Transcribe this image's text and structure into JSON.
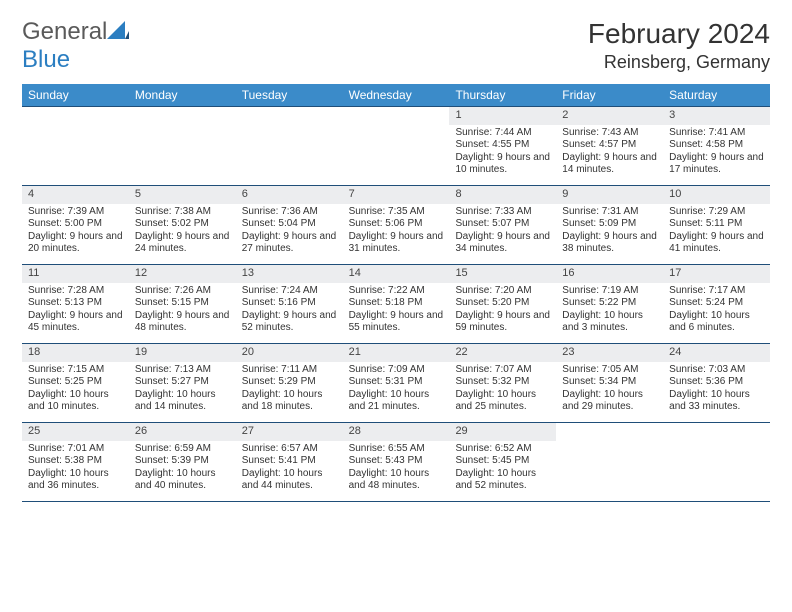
{
  "brand": {
    "text_a": "General",
    "text_b": "Blue"
  },
  "title": "February 2024",
  "location": "Reinsberg, Germany",
  "colors": {
    "header_bar": "#3b8bc9",
    "week_divider": "#1f4e79",
    "daynum_band": "#ecedef",
    "text": "#333333",
    "brand_blue": "#2b7ec1",
    "brand_gray": "#5a5a5a",
    "background": "#ffffff"
  },
  "day_names": [
    "Sunday",
    "Monday",
    "Tuesday",
    "Wednesday",
    "Thursday",
    "Friday",
    "Saturday"
  ],
  "weeks": [
    [
      {
        "empty": true
      },
      {
        "empty": true
      },
      {
        "empty": true
      },
      {
        "empty": true
      },
      {
        "day": "1",
        "sunrise": "Sunrise: 7:44 AM",
        "sunset": "Sunset: 4:55 PM",
        "daylight": "Daylight: 9 hours and 10 minutes."
      },
      {
        "day": "2",
        "sunrise": "Sunrise: 7:43 AM",
        "sunset": "Sunset: 4:57 PM",
        "daylight": "Daylight: 9 hours and 14 minutes."
      },
      {
        "day": "3",
        "sunrise": "Sunrise: 7:41 AM",
        "sunset": "Sunset: 4:58 PM",
        "daylight": "Daylight: 9 hours and 17 minutes."
      }
    ],
    [
      {
        "day": "4",
        "sunrise": "Sunrise: 7:39 AM",
        "sunset": "Sunset: 5:00 PM",
        "daylight": "Daylight: 9 hours and 20 minutes."
      },
      {
        "day": "5",
        "sunrise": "Sunrise: 7:38 AM",
        "sunset": "Sunset: 5:02 PM",
        "daylight": "Daylight: 9 hours and 24 minutes."
      },
      {
        "day": "6",
        "sunrise": "Sunrise: 7:36 AM",
        "sunset": "Sunset: 5:04 PM",
        "daylight": "Daylight: 9 hours and 27 minutes."
      },
      {
        "day": "7",
        "sunrise": "Sunrise: 7:35 AM",
        "sunset": "Sunset: 5:06 PM",
        "daylight": "Daylight: 9 hours and 31 minutes."
      },
      {
        "day": "8",
        "sunrise": "Sunrise: 7:33 AM",
        "sunset": "Sunset: 5:07 PM",
        "daylight": "Daylight: 9 hours and 34 minutes."
      },
      {
        "day": "9",
        "sunrise": "Sunrise: 7:31 AM",
        "sunset": "Sunset: 5:09 PM",
        "daylight": "Daylight: 9 hours and 38 minutes."
      },
      {
        "day": "10",
        "sunrise": "Sunrise: 7:29 AM",
        "sunset": "Sunset: 5:11 PM",
        "daylight": "Daylight: 9 hours and 41 minutes."
      }
    ],
    [
      {
        "day": "11",
        "sunrise": "Sunrise: 7:28 AM",
        "sunset": "Sunset: 5:13 PM",
        "daylight": "Daylight: 9 hours and 45 minutes."
      },
      {
        "day": "12",
        "sunrise": "Sunrise: 7:26 AM",
        "sunset": "Sunset: 5:15 PM",
        "daylight": "Daylight: 9 hours and 48 minutes."
      },
      {
        "day": "13",
        "sunrise": "Sunrise: 7:24 AM",
        "sunset": "Sunset: 5:16 PM",
        "daylight": "Daylight: 9 hours and 52 minutes."
      },
      {
        "day": "14",
        "sunrise": "Sunrise: 7:22 AM",
        "sunset": "Sunset: 5:18 PM",
        "daylight": "Daylight: 9 hours and 55 minutes."
      },
      {
        "day": "15",
        "sunrise": "Sunrise: 7:20 AM",
        "sunset": "Sunset: 5:20 PM",
        "daylight": "Daylight: 9 hours and 59 minutes."
      },
      {
        "day": "16",
        "sunrise": "Sunrise: 7:19 AM",
        "sunset": "Sunset: 5:22 PM",
        "daylight": "Daylight: 10 hours and 3 minutes."
      },
      {
        "day": "17",
        "sunrise": "Sunrise: 7:17 AM",
        "sunset": "Sunset: 5:24 PM",
        "daylight": "Daylight: 10 hours and 6 minutes."
      }
    ],
    [
      {
        "day": "18",
        "sunrise": "Sunrise: 7:15 AM",
        "sunset": "Sunset: 5:25 PM",
        "daylight": "Daylight: 10 hours and 10 minutes."
      },
      {
        "day": "19",
        "sunrise": "Sunrise: 7:13 AM",
        "sunset": "Sunset: 5:27 PM",
        "daylight": "Daylight: 10 hours and 14 minutes."
      },
      {
        "day": "20",
        "sunrise": "Sunrise: 7:11 AM",
        "sunset": "Sunset: 5:29 PM",
        "daylight": "Daylight: 10 hours and 18 minutes."
      },
      {
        "day": "21",
        "sunrise": "Sunrise: 7:09 AM",
        "sunset": "Sunset: 5:31 PM",
        "daylight": "Daylight: 10 hours and 21 minutes."
      },
      {
        "day": "22",
        "sunrise": "Sunrise: 7:07 AM",
        "sunset": "Sunset: 5:32 PM",
        "daylight": "Daylight: 10 hours and 25 minutes."
      },
      {
        "day": "23",
        "sunrise": "Sunrise: 7:05 AM",
        "sunset": "Sunset: 5:34 PM",
        "daylight": "Daylight: 10 hours and 29 minutes."
      },
      {
        "day": "24",
        "sunrise": "Sunrise: 7:03 AM",
        "sunset": "Sunset: 5:36 PM",
        "daylight": "Daylight: 10 hours and 33 minutes."
      }
    ],
    [
      {
        "day": "25",
        "sunrise": "Sunrise: 7:01 AM",
        "sunset": "Sunset: 5:38 PM",
        "daylight": "Daylight: 10 hours and 36 minutes."
      },
      {
        "day": "26",
        "sunrise": "Sunrise: 6:59 AM",
        "sunset": "Sunset: 5:39 PM",
        "daylight": "Daylight: 10 hours and 40 minutes."
      },
      {
        "day": "27",
        "sunrise": "Sunrise: 6:57 AM",
        "sunset": "Sunset: 5:41 PM",
        "daylight": "Daylight: 10 hours and 44 minutes."
      },
      {
        "day": "28",
        "sunrise": "Sunrise: 6:55 AM",
        "sunset": "Sunset: 5:43 PM",
        "daylight": "Daylight: 10 hours and 48 minutes."
      },
      {
        "day": "29",
        "sunrise": "Sunrise: 6:52 AM",
        "sunset": "Sunset: 5:45 PM",
        "daylight": "Daylight: 10 hours and 52 minutes."
      },
      {
        "empty": true
      },
      {
        "empty": true
      }
    ]
  ]
}
